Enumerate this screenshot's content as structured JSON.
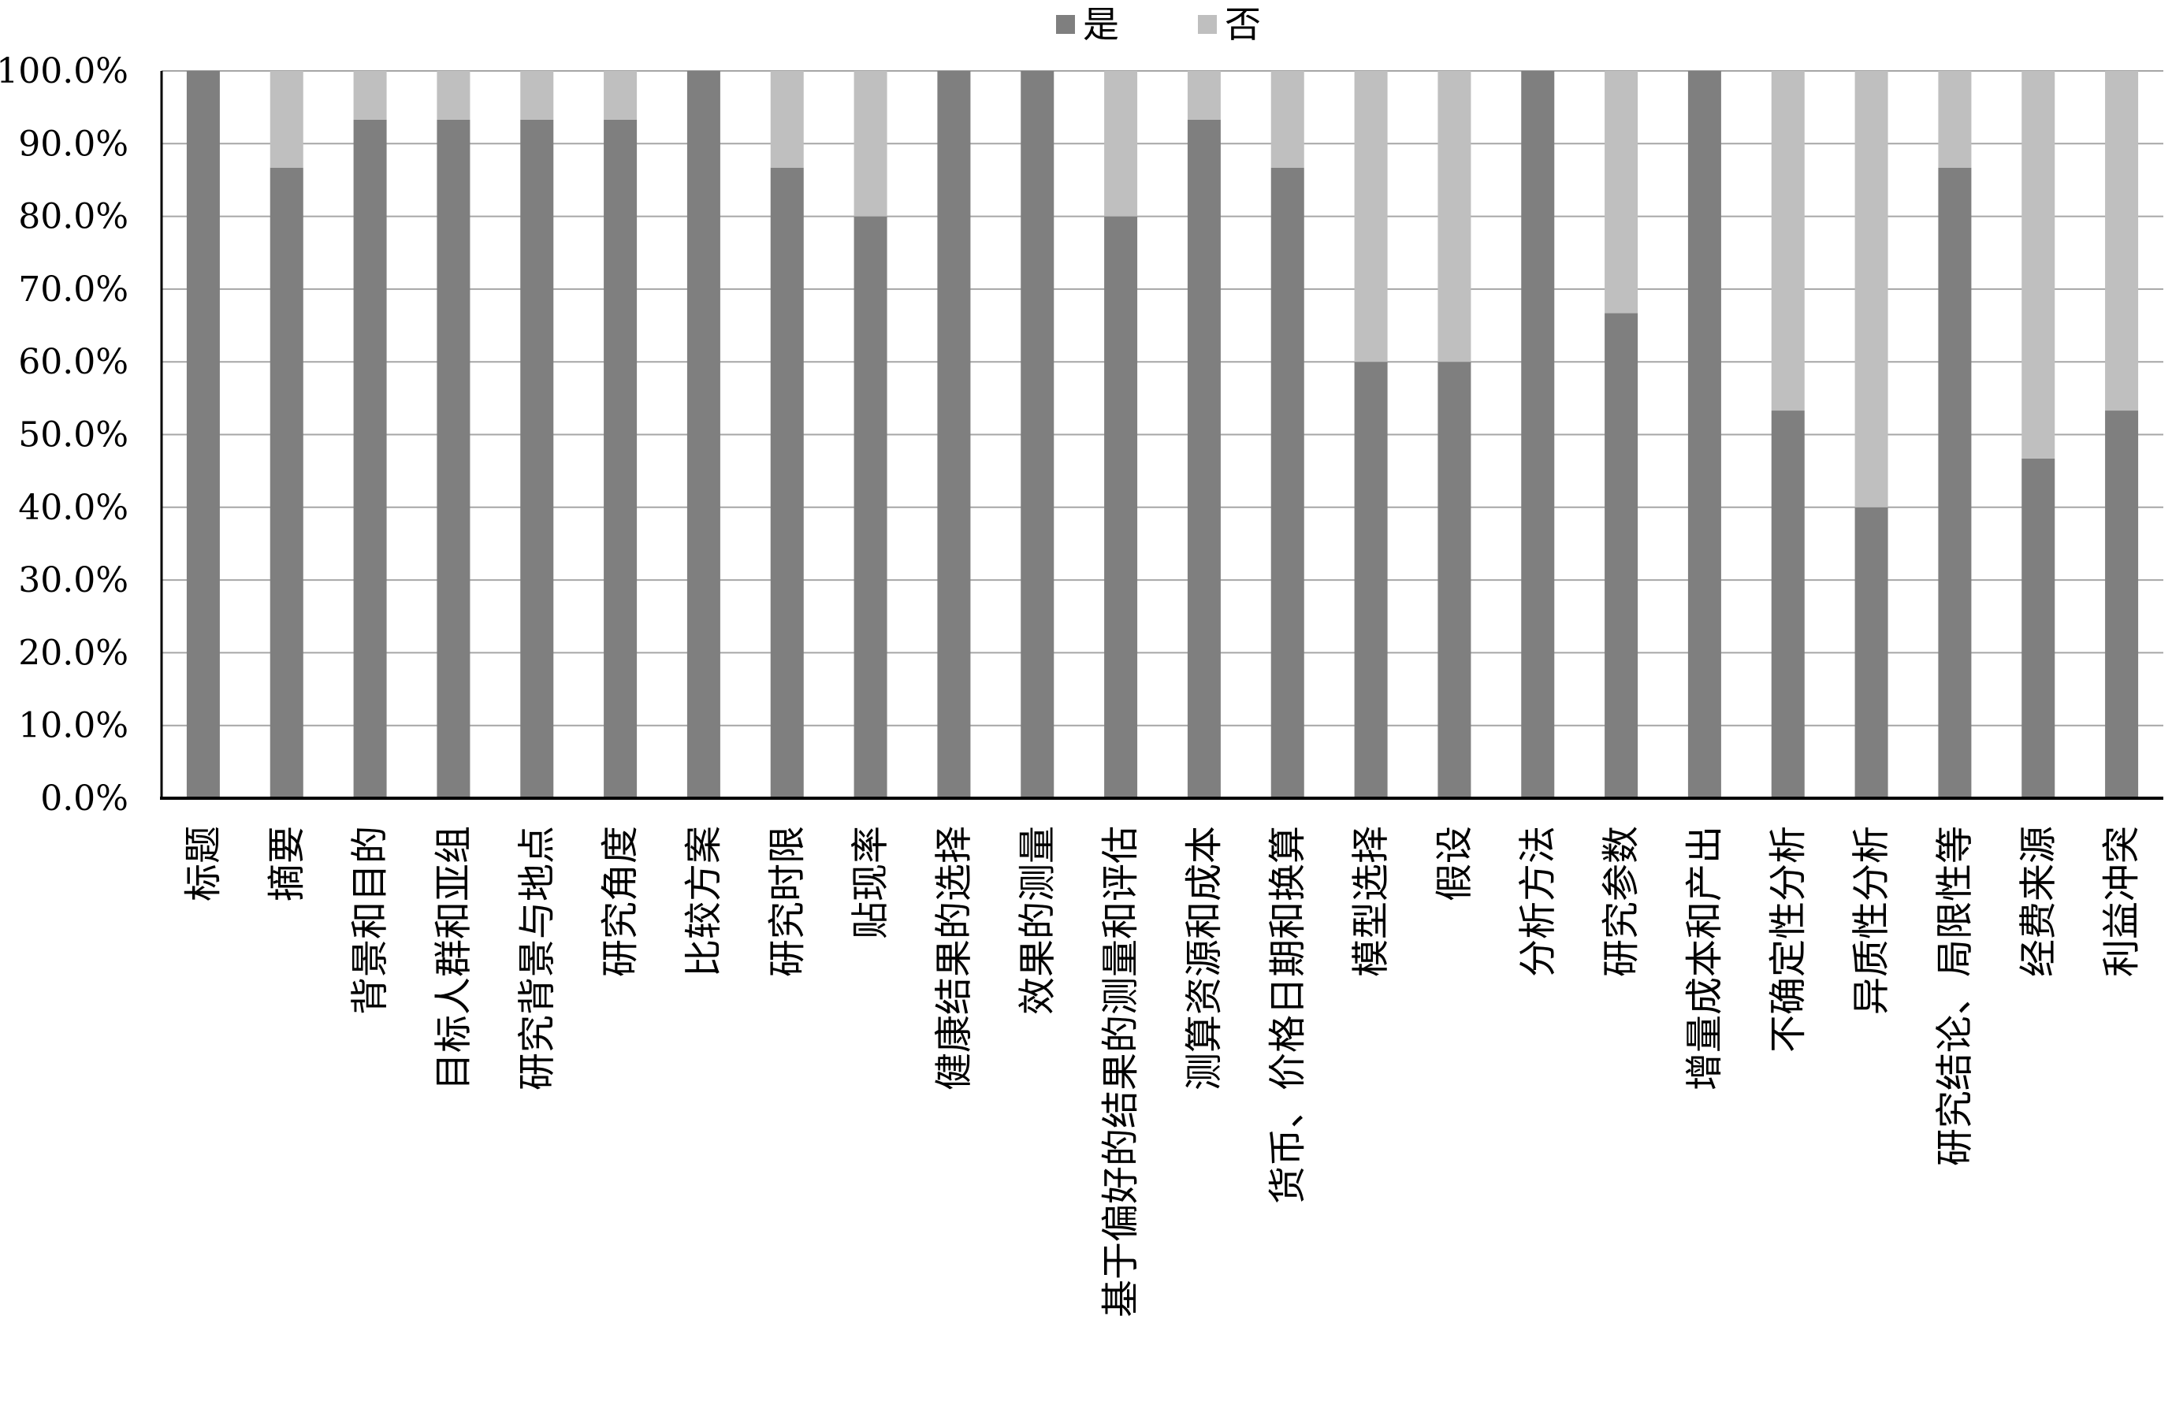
{
  "chart_data": {
    "type": "bar",
    "stacked": true,
    "categories": [
      "标题",
      "摘要",
      "背景和目的",
      "目标人群和亚组",
      "研究背景与地点",
      "研究角度",
      "比较方案",
      "研究时限",
      "贴现率",
      "健康结果的选择",
      "效果的测量",
      "基于偏好的结果的测量和评估",
      "测算资源和成本",
      "货币、价格日期和换算",
      "模型选择",
      "假设",
      "分析方法",
      "研究参数",
      "增量成本和产出",
      "不确定性分析",
      "异质性分析",
      "研究结论、局限性等",
      "经费来源",
      "利益冲突"
    ],
    "series": [
      {
        "name": "是",
        "color": "#7f7f7f",
        "values": [
          100.0,
          86.7,
          93.3,
          93.3,
          93.3,
          93.3,
          100.0,
          86.7,
          80.0,
          100.0,
          100.0,
          80.0,
          93.3,
          86.7,
          60.0,
          60.0,
          100.0,
          66.7,
          100.0,
          53.3,
          40.0,
          86.7,
          46.7,
          53.3
        ]
      },
      {
        "name": "否",
        "color": "#bfbfbf",
        "values": [
          0.0,
          13.3,
          6.7,
          6.7,
          6.7,
          6.7,
          0.0,
          13.3,
          20.0,
          0.0,
          0.0,
          20.0,
          6.7,
          13.3,
          40.0,
          40.0,
          0.0,
          33.3,
          0.0,
          46.7,
          60.0,
          13.3,
          53.3,
          46.7
        ]
      }
    ],
    "yticks": [
      "0.0%",
      "10.0%",
      "20.0%",
      "30.0%",
      "40.0%",
      "50.0%",
      "60.0%",
      "70.0%",
      "80.0%",
      "90.0%",
      "100.0%"
    ],
    "ylim": [
      0,
      100
    ],
    "grid": true,
    "legend_position": "top",
    "title": "",
    "xlabel": "",
    "ylabel": ""
  }
}
